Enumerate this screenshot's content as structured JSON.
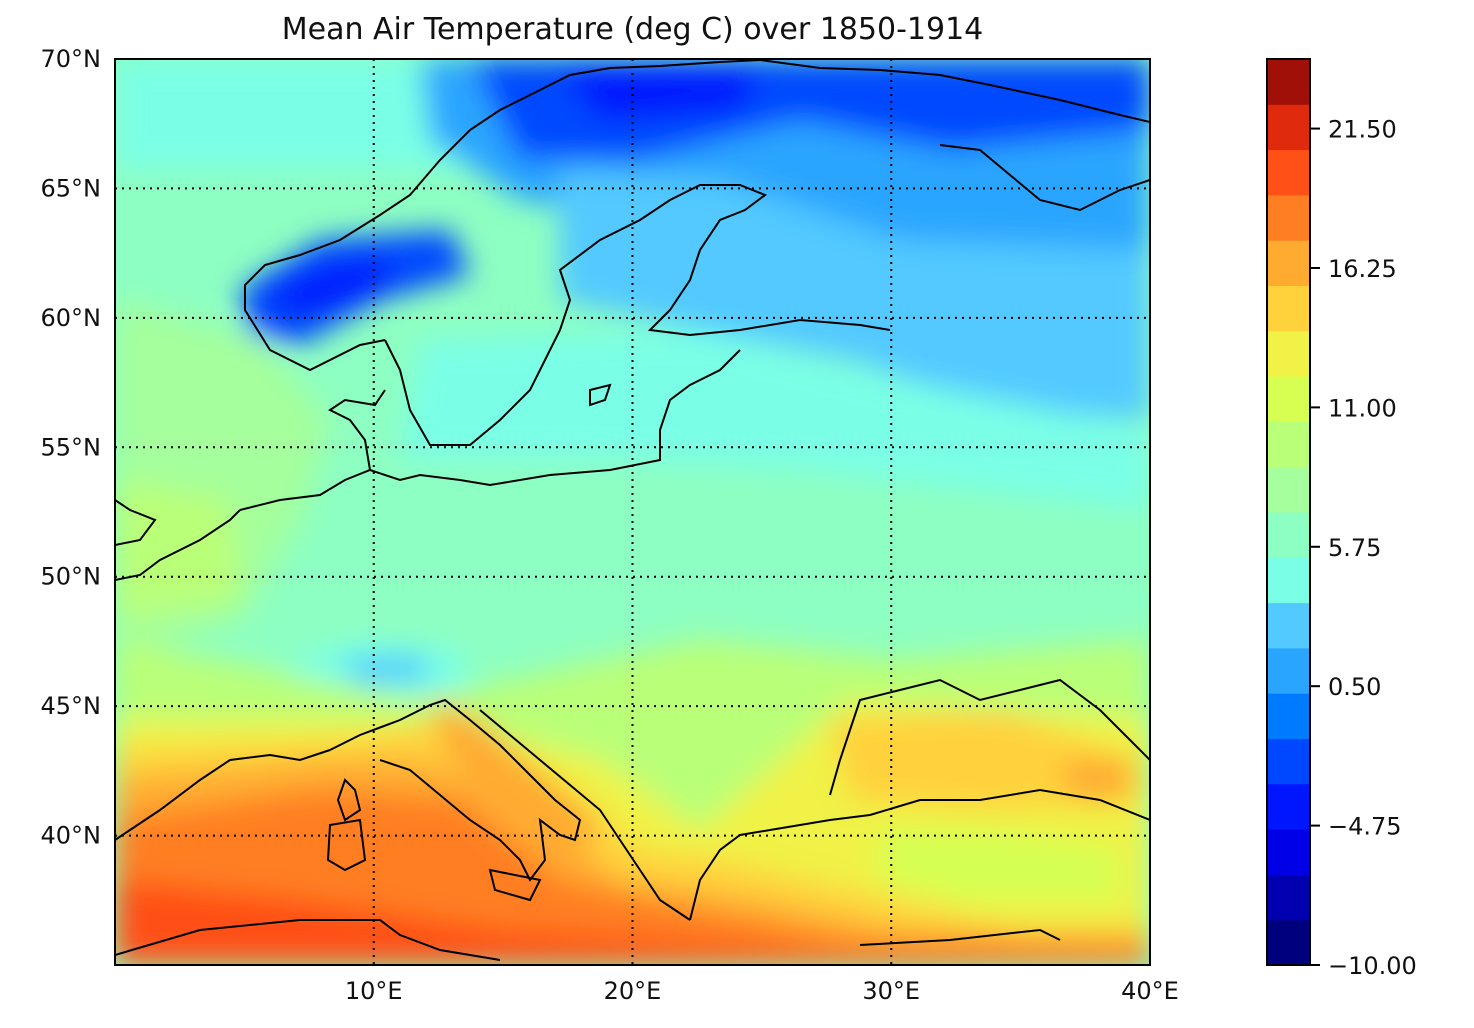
{
  "title": "Mean Air Temperature (deg C) over 1850-1914",
  "map": {
    "projection": "PlateCarree",
    "lon_range": [
      0,
      40
    ],
    "lat_range": [
      35,
      70
    ],
    "gridlines": "dotted",
    "lat_ticks": [
      {
        "value": 70,
        "label": "70°N"
      },
      {
        "value": 65,
        "label": "65°N"
      },
      {
        "value": 60,
        "label": "60°N"
      },
      {
        "value": 55,
        "label": "55°N"
      },
      {
        "value": 50,
        "label": "50°N"
      },
      {
        "value": 45,
        "label": "45°N"
      },
      {
        "value": 40,
        "label": "40°N"
      }
    ],
    "lon_ticks": [
      {
        "value": 10,
        "label": "10°E"
      },
      {
        "value": 20,
        "label": "20°E"
      },
      {
        "value": 30,
        "label": "30°E"
      },
      {
        "value": 40,
        "label": "40°E"
      }
    ]
  },
  "colorbar": {
    "min": -10.0,
    "max": 24.12,
    "levels": 20,
    "cmap": "jet",
    "colors": [
      "#00007f",
      "#0000b0",
      "#0000e8",
      "#0016ff",
      "#0048ff",
      "#007aff",
      "#2aa5ff",
      "#52c9ff",
      "#7affe6",
      "#8effc2",
      "#a4ff9c",
      "#baff78",
      "#d6ff52",
      "#f0f246",
      "#ffd23c",
      "#ffab30",
      "#ff7e22",
      "#ff5016",
      "#e02a0e",
      "#a01008"
    ],
    "tick_values": [
      -10.0,
      -4.75,
      0.5,
      5.75,
      11.0,
      16.25,
      21.5
    ],
    "tick_labels": [
      "−10.00",
      "−4.75",
      "0.50",
      "5.75",
      "11.00",
      "16.25",
      "21.50"
    ]
  }
}
